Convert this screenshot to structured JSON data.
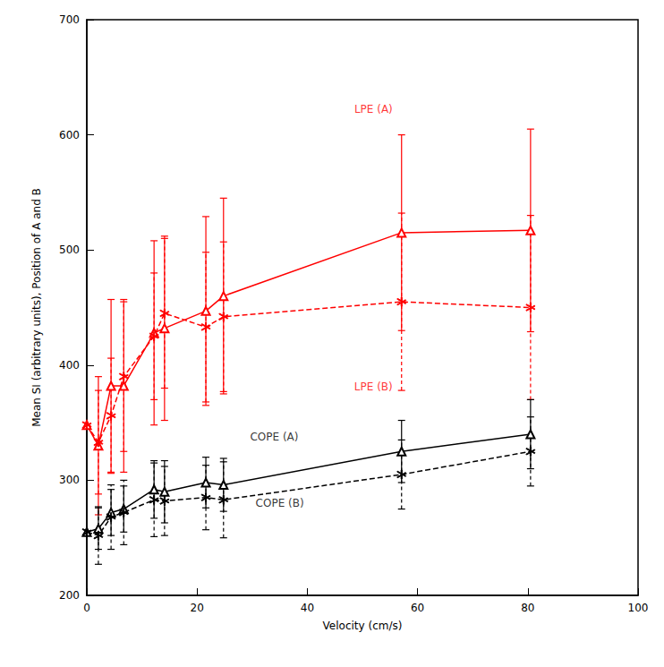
{
  "chart_data": {
    "type": "line",
    "x_label": "Velocity (cm/s)",
    "y_label": "Mean SI (arbitrary units), Position of A and B",
    "xlim": [
      0,
      100
    ],
    "xticks": [
      0,
      20,
      40,
      60,
      80,
      100
    ],
    "ylim": [
      200,
      700
    ],
    "yticks": [
      200,
      300,
      400,
      500,
      600,
      700
    ],
    "grid": false,
    "series": [
      {
        "name": "LPE (A)",
        "color": "#ff0000",
        "marker": "triangle",
        "line_style": "solid",
        "x": [
          0,
          2.1,
          4.4,
          6.7,
          12.2,
          14.1,
          21.6,
          24.8,
          57.1,
          80.5
        ],
        "values": [
          348,
          330,
          382,
          382,
          428,
          432,
          447,
          460,
          515,
          517
        ],
        "errors": [
          null,
          60,
          75,
          75,
          80,
          80,
          82,
          85,
          85,
          88
        ]
      },
      {
        "name": "LPE (B)",
        "color": "#ff0000",
        "marker": "asterisk",
        "line_style": "dashed",
        "x": [
          0,
          2.1,
          4.4,
          6.7,
          12.2,
          14.1,
          21.6,
          24.8,
          57.1,
          80.5
        ],
        "values": [
          348,
          333,
          356,
          390,
          425,
          445,
          433,
          442,
          455,
          450
        ],
        "errors": [
          null,
          45,
          50,
          65,
          55,
          65,
          65,
          65,
          77,
          80
        ]
      },
      {
        "name": "COPE (A)",
        "color": "#000000",
        "marker": "triangle",
        "line_style": "solid",
        "x": [
          0,
          2.1,
          4.4,
          6.7,
          12.2,
          14.1,
          21.6,
          24.8,
          57.1,
          80.5
        ],
        "values": [
          255,
          258,
          272,
          275,
          292,
          290,
          298,
          296,
          325,
          340
        ],
        "errors": [
          null,
          18,
          20,
          20,
          25,
          27,
          22,
          23,
          27,
          30
        ]
      },
      {
        "name": "COPE (B)",
        "color": "#000000",
        "marker": "asterisk",
        "line_style": "dashed",
        "x": [
          0,
          2.1,
          4.4,
          6.7,
          12.2,
          14.1,
          21.6,
          24.8,
          57.1,
          80.5
        ],
        "values": [
          255,
          252,
          268,
          272,
          283,
          282,
          285,
          283,
          305,
          325
        ],
        "errors": [
          null,
          25,
          28,
          28,
          32,
          30,
          28,
          33,
          30,
          30
        ]
      }
    ],
    "annotations": [
      {
        "text": "LPE (A)",
        "x": 52,
        "y": 622,
        "color": "#ff0000"
      },
      {
        "text": "LPE (B)",
        "x": 52,
        "y": 381,
        "color": "#ff0000"
      },
      {
        "text": "COPE (A)",
        "x": 34,
        "y": 338,
        "color": "#000000"
      },
      {
        "text": "COPE (B)",
        "x": 35,
        "y": 280,
        "color": "#000000"
      }
    ]
  }
}
